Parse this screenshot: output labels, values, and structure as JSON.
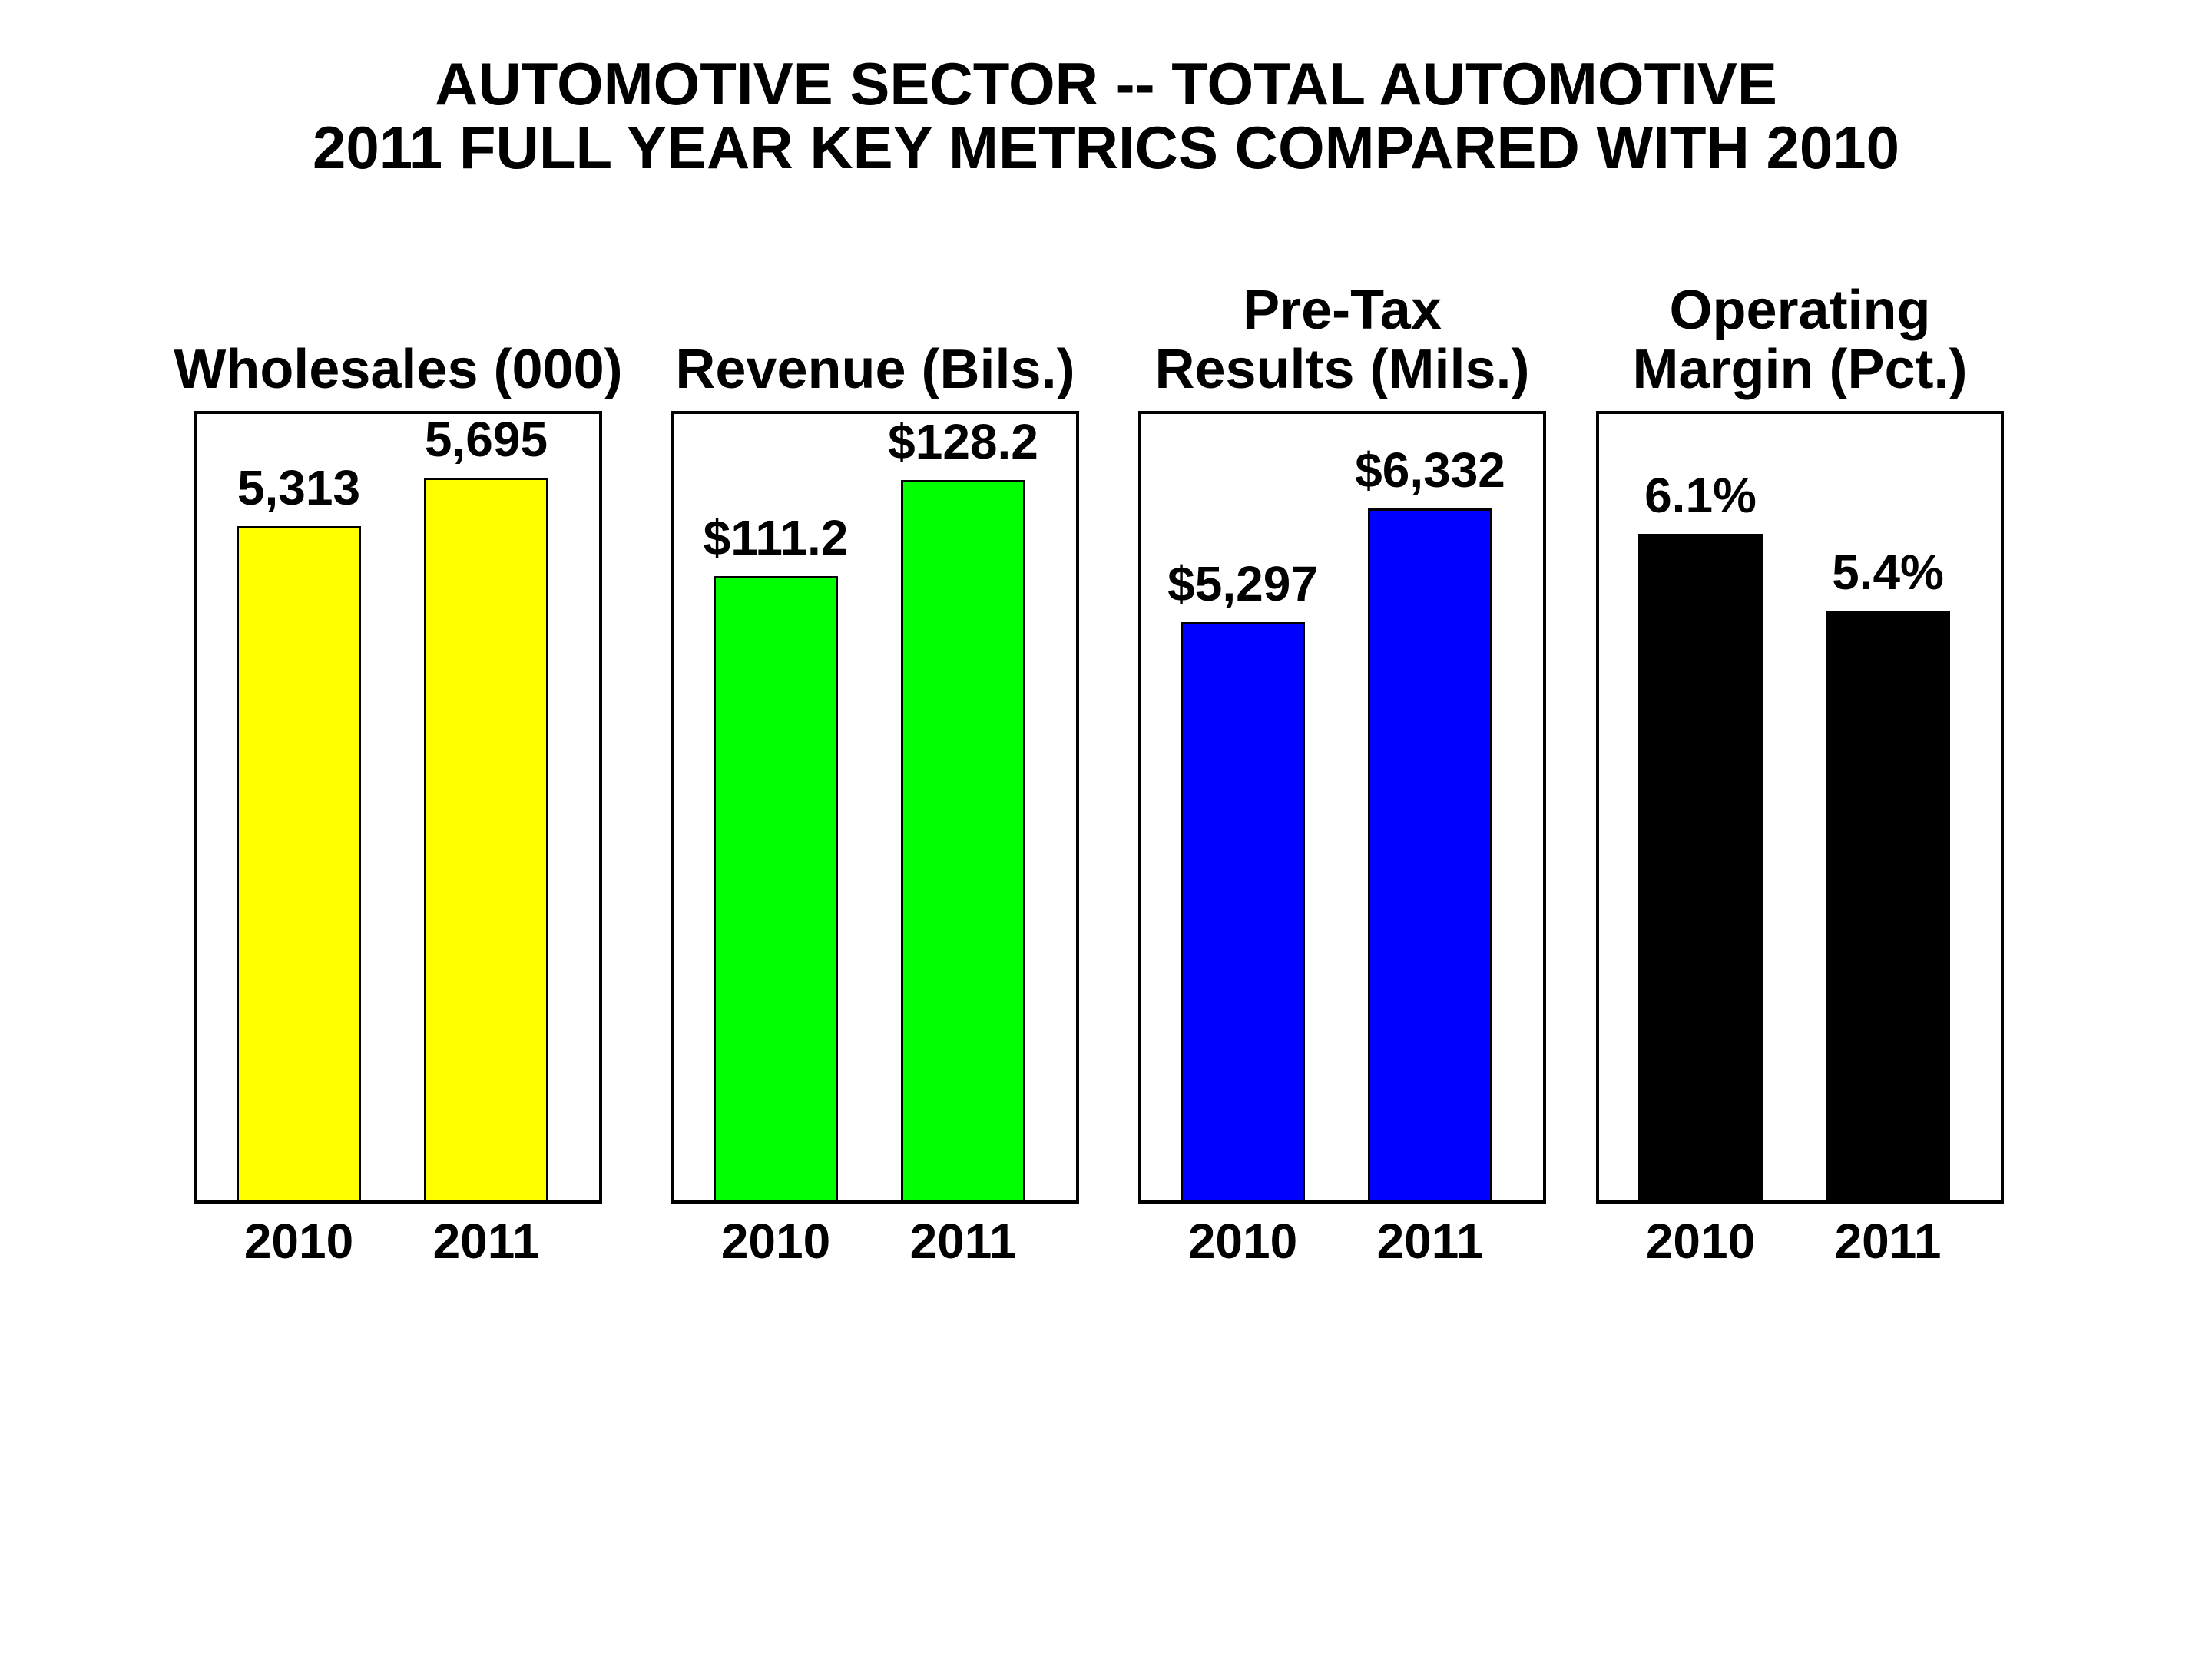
{
  "slide_title": {
    "line1": "AUTOMOTIVE SECTOR -- TOTAL AUTOMOTIVE",
    "line2": "2011 FULL YEAR KEY METRICS COMPARED WITH 2010"
  },
  "colors": {
    "background": "#FFFFFF",
    "text": "#000000",
    "wholesales_bar": "#FFFF00",
    "revenue_bar": "#00FF00",
    "pretax_bar": "#0000FF",
    "margin_bar": "#000000",
    "bar_outline": "#000000",
    "panel_border": "#000000"
  },
  "chart_data": [
    {
      "type": "bar",
      "title": "Wholesales (000)",
      "header_lines": [
        "Wholesales (000)"
      ],
      "categories": [
        "2010",
        "2011"
      ],
      "values": [
        5313,
        5695
      ],
      "value_labels": [
        "5,313",
        "5,695"
      ],
      "bar_color": "#FFFF00",
      "ylim": [
        0,
        6200
      ],
      "grid": false,
      "legend": "none"
    },
    {
      "type": "bar",
      "title": "Revenue (Bils.)",
      "header_lines": [
        "Revenue (Bils.)"
      ],
      "categories": [
        "2010",
        "2011"
      ],
      "values": [
        111.2,
        128.2
      ],
      "value_labels": [
        "$111.2",
        "$128.2"
      ],
      "bar_color": "#00FF00",
      "ylim": [
        0,
        140
      ],
      "grid": false,
      "legend": "none"
    },
    {
      "type": "bar",
      "title": "Pre-Tax Results (Mils.)",
      "header_lines": [
        "Pre-Tax",
        "Results (Mils.)"
      ],
      "categories": [
        "2010",
        "2011"
      ],
      "values": [
        5297,
        6332
      ],
      "value_labels": [
        "$5,297",
        "$6,332"
      ],
      "bar_color": "#0000FF",
      "ylim": [
        0,
        7200
      ],
      "grid": false,
      "legend": "none"
    },
    {
      "type": "bar",
      "title": "Operating Margin (Pct.)",
      "header_lines": [
        "Operating",
        "Margin (Pct.)"
      ],
      "categories": [
        "2010",
        "2011"
      ],
      "values": [
        6.1,
        5.4
      ],
      "value_labels": [
        "6.1%",
        "5.4%"
      ],
      "bar_color": "#000000",
      "ylim": [
        0,
        7.2
      ],
      "grid": false,
      "legend": "none"
    }
  ]
}
